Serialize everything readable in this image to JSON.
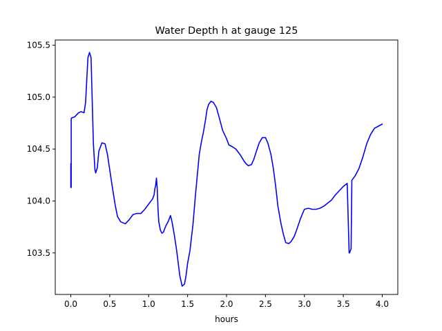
{
  "chart_data": {
    "type": "line",
    "title": "Water Depth h at gauge 125",
    "xlabel": "hours",
    "ylabel": "",
    "xlim": [
      -0.2,
      4.2
    ],
    "ylim": [
      103.1,
      105.55
    ],
    "xticks": [
      0.0,
      0.5,
      1.0,
      1.5,
      2.0,
      2.5,
      3.0,
      3.5,
      4.0
    ],
    "xtick_labels": [
      "0.0",
      "0.5",
      "1.0",
      "1.5",
      "2.0",
      "2.5",
      "3.0",
      "3.5",
      "4.0"
    ],
    "yticks": [
      103.5,
      104.0,
      104.5,
      105.0,
      105.5
    ],
    "ytick_labels": [
      "103.5",
      "104.0",
      "104.5",
      "105.0",
      "105.5"
    ],
    "grid": false,
    "legend": "none",
    "series": [
      {
        "color": "#0000ff",
        "x": [
          0.0,
          0.0,
          0.005,
          0.005,
          0.01,
          0.05,
          0.1,
          0.13,
          0.17,
          0.19,
          0.2,
          0.22,
          0.24,
          0.26,
          0.27,
          0.29,
          0.31,
          0.32,
          0.34,
          0.36,
          0.4,
          0.44,
          0.47,
          0.5,
          0.53,
          0.57,
          0.6,
          0.64,
          0.7,
          0.75,
          0.8,
          0.85,
          0.9,
          0.95,
          1.0,
          1.03,
          1.05,
          1.07,
          1.08,
          1.09,
          1.1,
          1.11,
          1.12,
          1.13,
          1.15,
          1.17,
          1.19,
          1.22,
          1.25,
          1.28,
          1.3,
          1.33,
          1.36,
          1.4,
          1.43,
          1.46,
          1.48,
          1.5,
          1.53,
          1.57,
          1.6,
          1.65,
          1.68,
          1.7,
          1.73,
          1.75,
          1.77,
          1.8,
          1.83,
          1.87,
          1.9,
          1.95,
          2.0,
          2.03,
          2.08,
          2.12,
          2.15,
          2.18,
          2.22,
          2.25,
          2.28,
          2.32,
          2.35,
          2.38,
          2.42,
          2.46,
          2.5,
          2.53,
          2.57,
          2.6,
          2.63,
          2.66,
          2.7,
          2.73,
          2.76,
          2.8,
          2.83,
          2.87,
          2.9,
          2.95,
          3.0,
          3.05,
          3.1,
          3.15,
          3.2,
          3.25,
          3.3,
          3.35,
          3.4,
          3.45,
          3.5,
          3.55,
          3.575,
          3.58,
          3.59,
          3.6,
          3.61,
          3.62,
          3.65,
          3.7,
          3.75,
          3.8,
          3.85,
          3.9,
          3.95,
          4.0
        ],
        "y": [
          104.36,
          104.13,
          104.13,
          104.79,
          104.8,
          104.81,
          104.85,
          104.86,
          104.85,
          104.95,
          105.1,
          105.38,
          105.43,
          105.38,
          105.1,
          104.55,
          104.3,
          104.27,
          104.32,
          104.48,
          104.56,
          104.55,
          104.45,
          104.3,
          104.15,
          103.96,
          103.85,
          103.8,
          103.78,
          103.82,
          103.87,
          103.88,
          103.88,
          103.92,
          103.97,
          104.0,
          104.02,
          104.06,
          104.12,
          104.15,
          104.22,
          104.12,
          103.92,
          103.8,
          103.72,
          103.69,
          103.7,
          103.76,
          103.8,
          103.86,
          103.8,
          103.67,
          103.52,
          103.28,
          103.18,
          103.2,
          103.28,
          103.4,
          103.52,
          103.78,
          104.05,
          104.45,
          104.58,
          104.65,
          104.78,
          104.88,
          104.93,
          104.96,
          104.95,
          104.9,
          104.82,
          104.68,
          104.6,
          104.54,
          104.52,
          104.5,
          104.47,
          104.44,
          104.39,
          104.36,
          104.34,
          104.35,
          104.4,
          104.47,
          104.56,
          104.61,
          104.61,
          104.56,
          104.45,
          104.32,
          104.15,
          103.95,
          103.78,
          103.68,
          103.6,
          103.59,
          103.61,
          103.66,
          103.72,
          103.83,
          103.92,
          103.93,
          103.92,
          103.92,
          103.93,
          103.95,
          103.98,
          104.01,
          104.06,
          104.1,
          104.14,
          104.17,
          103.5,
          103.5,
          103.52,
          103.54,
          104.2,
          104.21,
          104.24,
          104.31,
          104.42,
          104.55,
          104.64,
          104.7,
          104.72,
          104.74
        ]
      }
    ]
  }
}
